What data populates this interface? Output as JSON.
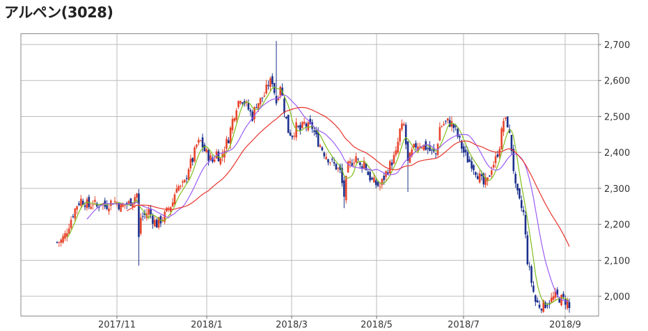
{
  "title": "アルペン(3028)",
  "chart_data": {
    "type": "candlestick",
    "title": "アルペン(3028)",
    "xlabel": "",
    "ylabel": "",
    "ylim": [
      1945,
      2730
    ],
    "grid": true,
    "y_axis_position": "right",
    "y_ticks": [
      "2,700",
      "2,600",
      "2,500",
      "2,400",
      "2,300",
      "2,200",
      "2,100",
      "2,000"
    ],
    "y_tick_values": [
      2700,
      2600,
      2500,
      2400,
      2300,
      2200,
      2100,
      2000
    ],
    "x_ticks": [
      "2017/11",
      "2018/1",
      "2018/3",
      "2018/5",
      "2018/7",
      "2018/9"
    ],
    "x_tick_positions": [
      40,
      80,
      120,
      160,
      200,
      240
    ],
    "x_range": [
      0,
      250
    ],
    "colors": {
      "up": "#e8452c",
      "down": "#1b2f8c",
      "ma_short": "#7fbf1a",
      "ma_mid": "#9b5bf5",
      "ma_long": "#e8322a"
    },
    "price_anchors": [
      [
        0,
        2150
      ],
      [
        2,
        2155
      ],
      [
        4,
        2170
      ],
      [
        6,
        2200
      ],
      [
        8,
        2230
      ],
      [
        10,
        2255
      ],
      [
        12,
        2268
      ],
      [
        14,
        2262
      ],
      [
        16,
        2250
      ],
      [
        18,
        2262
      ],
      [
        20,
        2248
      ],
      [
        22,
        2262
      ],
      [
        24,
        2250
      ],
      [
        26,
        2258
      ],
      [
        28,
        2265
      ],
      [
        30,
        2262
      ],
      [
        32,
        2248
      ],
      [
        34,
        2255
      ],
      [
        36,
        2258
      ],
      [
        38,
        2270
      ],
      [
        40,
        2285
      ],
      [
        41,
        2160
      ],
      [
        42,
        2220
      ],
      [
        44,
        2225
      ],
      [
        46,
        2238
      ],
      [
        48,
        2215
      ],
      [
        50,
        2200
      ],
      [
        52,
        2212
      ],
      [
        54,
        2225
      ],
      [
        56,
        2245
      ],
      [
        58,
        2262
      ],
      [
        60,
        2310
      ],
      [
        62,
        2300
      ],
      [
        64,
        2315
      ],
      [
        66,
        2360
      ],
      [
        68,
        2380
      ],
      [
        70,
        2420
      ],
      [
        72,
        2430
      ],
      [
        74,
        2405
      ],
      [
        76,
        2390
      ],
      [
        78,
        2375
      ],
      [
        80,
        2400
      ],
      [
        82,
        2380
      ],
      [
        84,
        2415
      ],
      [
        86,
        2440
      ],
      [
        88,
        2490
      ],
      [
        90,
        2530
      ],
      [
        92,
        2555
      ],
      [
        94,
        2540
      ],
      [
        96,
        2520
      ],
      [
        98,
        2500
      ],
      [
        100,
        2535
      ],
      [
        102,
        2545
      ],
      [
        104,
        2560
      ],
      [
        106,
        2590
      ],
      [
        108,
        2600
      ],
      [
        110,
        2540
      ],
      [
        112,
        2590
      ],
      [
        114,
        2520
      ],
      [
        116,
        2460
      ],
      [
        118,
        2450
      ],
      [
        120,
        2470
      ],
      [
        122,
        2460
      ],
      [
        124,
        2480
      ],
      [
        126,
        2470
      ],
      [
        128,
        2470
      ],
      [
        130,
        2440
      ],
      [
        132,
        2420
      ],
      [
        134,
        2400
      ],
      [
        136,
        2385
      ],
      [
        138,
        2370
      ],
      [
        140,
        2360
      ],
      [
        142,
        2345
      ],
      [
        144,
        2280
      ],
      [
        146,
        2360
      ],
      [
        148,
        2375
      ],
      [
        150,
        2390
      ],
      [
        152,
        2360
      ],
      [
        154,
        2375
      ],
      [
        156,
        2340
      ],
      [
        158,
        2320
      ],
      [
        160,
        2312
      ],
      [
        162,
        2305
      ],
      [
        164,
        2330
      ],
      [
        166,
        2355
      ],
      [
        168,
        2375
      ],
      [
        170,
        2395
      ],
      [
        172,
        2460
      ],
      [
        174,
        2475
      ],
      [
        176,
        2370
      ],
      [
        178,
        2400
      ],
      [
        180,
        2420
      ],
      [
        182,
        2425
      ],
      [
        184,
        2418
      ],
      [
        186,
        2410
      ],
      [
        188,
        2400
      ],
      [
        190,
        2395
      ],
      [
        192,
        2470
      ],
      [
        194,
        2480
      ],
      [
        196,
        2485
      ],
      [
        198,
        2480
      ],
      [
        200,
        2460
      ],
      [
        202,
        2430
      ],
      [
        204,
        2400
      ],
      [
        206,
        2380
      ],
      [
        208,
        2370
      ],
      [
        210,
        2350
      ],
      [
        212,
        2330
      ],
      [
        214,
        2310
      ],
      [
        216,
        2320
      ],
      [
        218,
        2360
      ],
      [
        220,
        2380
      ],
      [
        222,
        2420
      ],
      [
        224,
        2490
      ],
      [
        226,
        2480
      ],
      [
        228,
        2410
      ],
      [
        230,
        2300
      ],
      [
        232,
        2260
      ],
      [
        234,
        2230
      ],
      [
        236,
        2100
      ],
      [
        238,
        2040
      ],
      [
        240,
        1985
      ],
      [
        242,
        1975
      ],
      [
        244,
        1975
      ],
      [
        246,
        1982
      ],
      [
        248,
        1990
      ],
      [
        250,
        2000
      ],
      [
        252,
        1995
      ],
      [
        254,
        1990
      ],
      [
        256,
        1985
      ],
      [
        257,
        1965
      ]
    ],
    "series": [
      {
        "name": "",
        "kind": "ohlc"
      },
      {
        "name": "",
        "kind": "sma",
        "period": 6
      },
      {
        "name": "",
        "kind": "sma",
        "period": 16
      },
      {
        "name": "",
        "kind": "sma",
        "period": 36
      }
    ]
  }
}
